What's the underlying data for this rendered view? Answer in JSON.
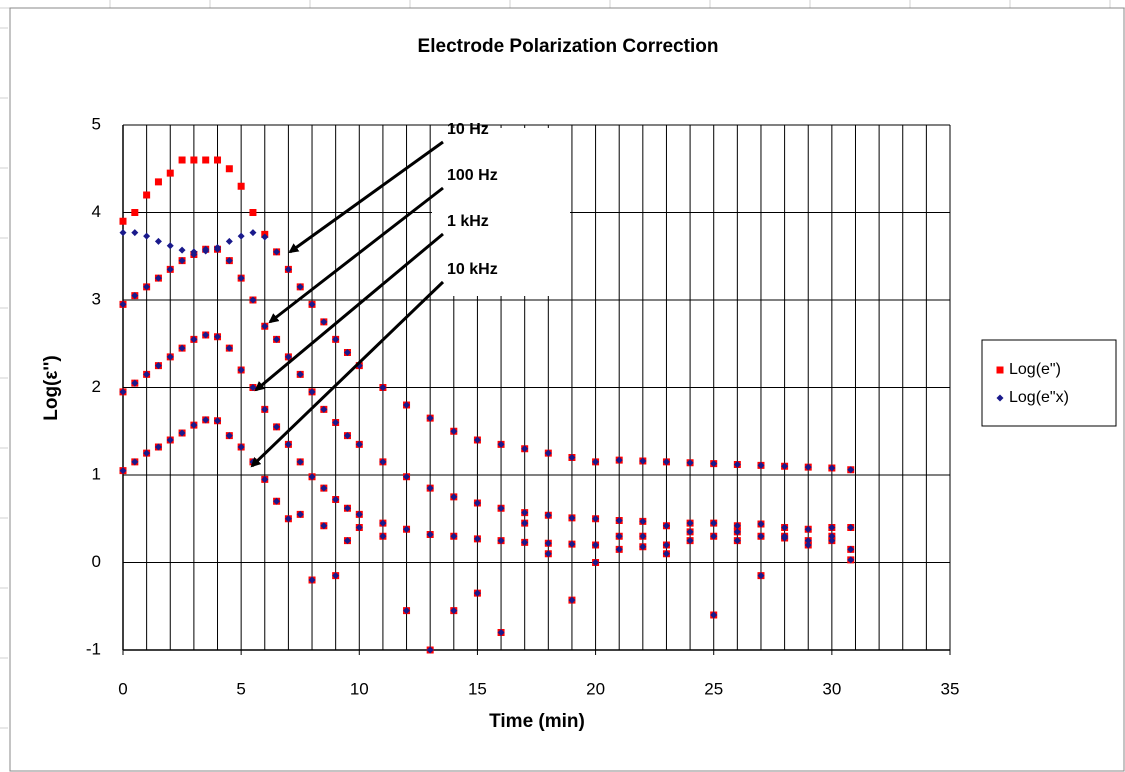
{
  "chart_data": {
    "type": "scatter",
    "title": "Electrode Polarization Correction",
    "xlabel": "Time (min)",
    "ylabel": "Log(ε'')",
    "xlim": [
      0,
      35
    ],
    "xticks": [
      0,
      5,
      10,
      15,
      20,
      25,
      30,
      35
    ],
    "ylim": [
      -1,
      5
    ],
    "yticks": [
      -1,
      0,
      1,
      2,
      3,
      4,
      5
    ],
    "x_gridlines": [
      0,
      1,
      2,
      3,
      4,
      5,
      6,
      7,
      8,
      9,
      10,
      11,
      12,
      13,
      14,
      15,
      16,
      17,
      18,
      19,
      20,
      21,
      22,
      23,
      24,
      25,
      26,
      27,
      28,
      29,
      30,
      31,
      32,
      33,
      34,
      35
    ],
    "grid": true,
    "legend": "right",
    "annotations": [
      "10 Hz",
      "100 Hz",
      "1 kHz",
      "10 kHz"
    ],
    "series": [
      {
        "name": "Log(e\")",
        "color": "#ff0000",
        "marker": "square",
        "x": [
          0,
          0.5,
          1,
          1.5,
          2,
          2.5,
          3,
          3.5,
          4,
          4.5,
          5,
          5.5,
          6,
          6.5,
          7,
          7.5,
          8,
          8.5,
          9,
          9.5,
          10,
          11,
          12,
          13,
          14,
          15,
          16,
          17,
          18,
          19,
          20,
          21,
          22,
          23,
          24,
          25,
          26,
          27,
          28,
          29,
          30,
          30.8,
          0,
          0.5,
          1,
          1.5,
          2,
          2.5,
          3,
          3.5,
          4,
          4.5,
          5,
          5.5,
          6,
          6.5,
          7,
          7.5,
          8,
          8.5,
          9,
          9.5,
          10,
          11,
          12,
          13,
          14,
          15,
          16,
          17,
          18,
          19,
          20,
          21,
          22,
          23,
          24,
          25,
          26,
          27,
          28,
          29,
          30,
          30.8,
          0,
          0.5,
          1,
          1.5,
          2,
          2.5,
          3,
          3.5,
          4,
          4.5,
          5,
          5.5,
          6,
          6.5,
          7,
          7.5,
          8,
          8.5,
          9,
          9.5,
          10,
          11,
          12,
          13,
          14,
          15,
          16,
          17,
          18,
          19,
          20,
          21,
          22,
          23,
          24,
          25,
          26,
          27,
          28,
          29,
          30,
          30.8,
          0,
          0.5,
          1,
          1.5,
          2,
          2.5,
          3,
          3.5,
          4,
          4.5,
          5,
          5.5,
          6,
          6.5,
          7,
          7.5,
          8,
          8.5,
          9,
          9.5,
          10,
          11,
          12,
          13,
          14,
          15,
          16,
          17,
          18,
          19,
          20,
          21,
          22,
          23,
          24,
          25,
          26,
          27,
          28,
          29,
          30,
          30.8
        ],
        "values": [
          3.9,
          4.0,
          4.2,
          4.35,
          4.45,
          4.6,
          4.6,
          4.6,
          4.6,
          4.5,
          4.3,
          4.0,
          3.75,
          3.55,
          3.35,
          3.15,
          2.95,
          2.75,
          2.55,
          2.4,
          2.25,
          2.0,
          1.8,
          1.65,
          1.5,
          1.4,
          1.35,
          1.3,
          1.25,
          1.2,
          1.15,
          1.17,
          1.16,
          1.15,
          1.14,
          1.13,
          1.12,
          1.11,
          1.1,
          1.09,
          1.08,
          1.06,
          2.95,
          3.05,
          3.15,
          3.25,
          3.35,
          3.45,
          3.52,
          3.58,
          3.58,
          3.45,
          3.25,
          3.0,
          2.7,
          2.55,
          2.35,
          2.15,
          1.95,
          1.75,
          1.6,
          1.45,
          1.35,
          1.15,
          0.98,
          0.85,
          0.75,
          0.68,
          0.62,
          0.57,
          0.54,
          0.51,
          0.5,
          0.48,
          0.47,
          0.42,
          0.45,
          0.45,
          0.42,
          0.44,
          0.4,
          0.38,
          0.4,
          0.4,
          1.95,
          2.05,
          2.15,
          2.25,
          2.35,
          2.45,
          2.55,
          2.6,
          2.58,
          2.45,
          2.2,
          2.0,
          1.75,
          1.55,
          1.35,
          1.15,
          0.98,
          0.85,
          0.72,
          0.62,
          0.55,
          0.45,
          0.38,
          0.32,
          0.3,
          0.27,
          0.25,
          0.23,
          0.22,
          0.21,
          0.2,
          0.3,
          0.18,
          0.2,
          0.25,
          0.3,
          0.25,
          0.3,
          0.28,
          0.25,
          0.3,
          0.03,
          1.05,
          1.15,
          1.25,
          1.32,
          1.4,
          1.48,
          1.57,
          1.63,
          1.62,
          1.45,
          1.32,
          1.15,
          0.95,
          0.7,
          0.5,
          0.55,
          -0.2,
          0.42,
          -0.15,
          0.25,
          0.4,
          0.3,
          -0.55,
          -1.0,
          -0.55,
          -0.35,
          -0.8,
          0.45,
          0.1,
          -0.43,
          0.0,
          0.15,
          0.3,
          0.1,
          0.35,
          -0.6,
          0.35,
          -0.15,
          0.3,
          0.2,
          0.25,
          0.15
        ]
      },
      {
        "name": "Log(e\"x)",
        "color": "#1a1a8c",
        "marker": "diamond",
        "x": [
          0,
          0.5,
          1,
          1.5,
          2,
          2.5,
          3,
          3.5,
          4,
          4.5,
          5,
          5.5,
          6,
          6.5,
          7,
          7.5,
          8,
          8.5,
          9,
          9.5,
          10,
          11,
          12,
          13,
          14,
          15,
          16,
          17,
          18,
          19,
          20,
          21,
          22,
          23,
          24,
          25,
          26,
          27,
          28,
          29,
          30,
          30.8,
          0,
          0.5,
          1,
          1.5,
          2,
          2.5,
          3,
          3.5,
          4,
          4.5,
          5,
          5.5,
          6,
          6.5,
          7,
          7.5,
          8,
          8.5,
          9,
          9.5,
          10,
          11,
          12,
          13,
          14,
          15,
          16,
          17,
          18,
          19,
          20,
          21,
          22,
          23,
          24,
          25,
          26,
          27,
          28,
          29,
          30,
          30.8,
          0,
          0.5,
          1,
          1.5,
          2,
          2.5,
          3,
          3.5,
          4,
          4.5,
          5,
          5.5,
          6,
          6.5,
          7,
          7.5,
          8,
          8.5,
          9,
          9.5,
          10,
          11,
          12,
          13,
          14,
          15,
          16,
          17,
          18,
          19,
          20,
          21,
          22,
          23,
          24,
          25,
          26,
          27,
          28,
          29,
          30,
          30.8,
          0,
          0.5,
          1,
          1.5,
          2,
          2.5,
          3,
          3.5,
          4,
          4.5,
          5,
          5.5,
          6,
          6.5,
          7,
          7.5,
          8,
          8.5,
          9,
          9.5,
          10,
          11,
          12,
          13,
          14,
          15,
          16,
          17,
          18,
          19,
          20,
          21,
          22,
          23,
          24,
          25,
          26,
          27,
          28,
          29,
          30,
          30.8
        ],
        "values": [
          3.77,
          3.77,
          3.73,
          3.67,
          3.62,
          3.57,
          3.55,
          3.56,
          3.6,
          3.67,
          3.73,
          3.77,
          3.72,
          3.55,
          3.35,
          3.15,
          2.95,
          2.75,
          2.55,
          2.4,
          2.25,
          2.0,
          1.8,
          1.65,
          1.5,
          1.4,
          1.35,
          1.3,
          1.25,
          1.2,
          1.15,
          1.17,
          1.16,
          1.15,
          1.14,
          1.13,
          1.12,
          1.11,
          1.1,
          1.09,
          1.08,
          1.06,
          2.95,
          3.05,
          3.15,
          3.25,
          3.35,
          3.45,
          3.52,
          3.58,
          3.58,
          3.45,
          3.25,
          3.0,
          2.7,
          2.55,
          2.35,
          2.15,
          1.95,
          1.75,
          1.6,
          1.45,
          1.35,
          1.15,
          0.98,
          0.85,
          0.75,
          0.68,
          0.62,
          0.57,
          0.54,
          0.51,
          0.5,
          0.48,
          0.47,
          0.42,
          0.45,
          0.45,
          0.42,
          0.44,
          0.4,
          0.38,
          0.4,
          0.4,
          1.95,
          2.05,
          2.15,
          2.25,
          2.35,
          2.45,
          2.55,
          2.6,
          2.58,
          2.45,
          2.2,
          2.0,
          1.75,
          1.55,
          1.35,
          1.15,
          0.98,
          0.85,
          0.72,
          0.62,
          0.55,
          0.45,
          0.38,
          0.32,
          0.3,
          0.27,
          0.25,
          0.23,
          0.22,
          0.21,
          0.2,
          0.3,
          0.18,
          0.2,
          0.25,
          0.3,
          0.25,
          0.3,
          0.28,
          0.25,
          0.3,
          0.03,
          1.05,
          1.15,
          1.25,
          1.32,
          1.4,
          1.48,
          1.57,
          1.63,
          1.62,
          1.45,
          1.32,
          1.15,
          0.95,
          0.7,
          0.5,
          0.55,
          -0.2,
          0.42,
          -0.15,
          0.25,
          0.4,
          0.3,
          -0.55,
          -1.0,
          -0.55,
          -0.35,
          -0.8,
          0.45,
          0.1,
          -0.43,
          0.0,
          0.15,
          0.3,
          0.1,
          0.35,
          -0.6,
          0.35,
          -0.15,
          0.3,
          0.2,
          0.25,
          0.15
        ]
      }
    ]
  }
}
